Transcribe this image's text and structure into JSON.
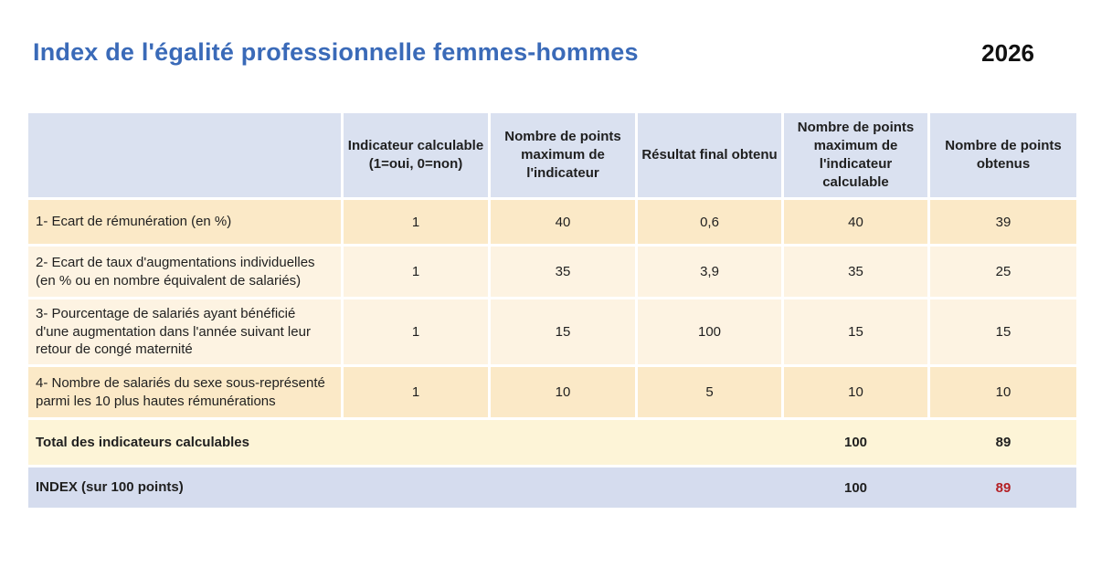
{
  "page": {
    "title": "Index de l'égalité professionnelle femmes-hommes",
    "year": "2026"
  },
  "table": {
    "headers": [
      "",
      "Indicateur calculable (1=oui, 0=non)",
      "Nombre de points maximum de l'indicateur",
      "Résultat final obtenu",
      "Nombre de points maximum de l'indicateur calculable",
      "Nombre de points obtenus"
    ],
    "rows": [
      {
        "label": "1- Ecart de rémunération (en %)",
        "values": [
          "1",
          "40",
          "0,6",
          "40",
          "39"
        ]
      },
      {
        "label": "2- Ecart de taux d'augmentations individuelles (en % ou en nombre équivalent de salariés)",
        "values": [
          "1",
          "35",
          "3,9",
          "35",
          "25"
        ]
      },
      {
        "label": "3- Pourcentage de salariés ayant bénéficié d'une augmentation dans l'année suivant leur retour de congé maternité",
        "values": [
          "1",
          "15",
          "100",
          "15",
          "15"
        ]
      },
      {
        "label": "4- Nombre de salariés du sexe sous-représenté parmi les 10 plus hautes rémunérations",
        "values": [
          "1",
          "10",
          "5",
          "10",
          "10"
        ]
      }
    ],
    "total_row": {
      "label": "Total des indicateurs calculables",
      "max": "100",
      "obtained": "89"
    },
    "index_row": {
      "label": "INDEX (sur 100 points)",
      "max": "100",
      "obtained": "89"
    }
  },
  "colors": {
    "title_blue": "#3a6ab8",
    "header_bg": "#dae1f0",
    "row_dark_bg": "#fbe9c7",
    "row_light_bg": "#fdf3e2",
    "total_row_bg": "#fdf4d7",
    "index_row_bg": "#d5dcee",
    "index_value_red": "#b41f24",
    "text": "#1f1f1f"
  }
}
